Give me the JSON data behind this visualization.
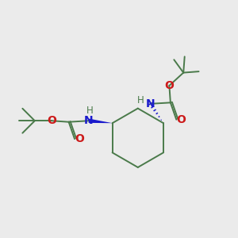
{
  "background_color": "#ebebeb",
  "atom_colors": {
    "C": "#4a7a4a",
    "N": "#1a1acc",
    "O": "#cc1a1a",
    "H": "#4a7a4a"
  },
  "bond_color": "#4a7a4a",
  "figsize": [
    3.0,
    3.0
  ],
  "dpi": 100
}
